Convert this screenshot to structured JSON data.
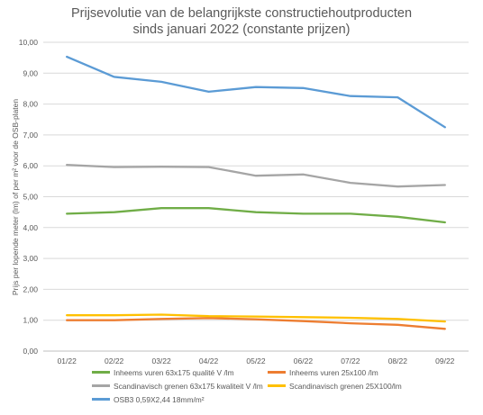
{
  "chart_data": {
    "type": "line",
    "title_line1": "Prijsevolutie van de belangrijkste constructiehoutproducten",
    "title_line2": "sinds januari 2022 (constante prijzen)",
    "ylabel": "Prijs per lopende meter (lm)  of per m² voor de OSB-platen",
    "xlabel": "",
    "ylim": [
      0,
      10
    ],
    "yticks": [
      "0,00",
      "1,00",
      "2,00",
      "3,00",
      "4,00",
      "5,00",
      "6,00",
      "7,00",
      "8,00",
      "9,00",
      "10,00"
    ],
    "categories": [
      "01/22",
      "02/22",
      "03/22",
      "04/22",
      "05/22",
      "06/22",
      "07/22",
      "08/22",
      "09/22"
    ],
    "grid": true,
    "legend_position": "bottom",
    "series": [
      {
        "name": "Inheems vuren 63x175 qualité V /lm",
        "color": "#70AD47",
        "values": [
          4.45,
          4.5,
          4.63,
          4.63,
          4.5,
          4.45,
          4.45,
          4.35,
          4.17
        ]
      },
      {
        "name": "Inheems vuren 25x100 /lm",
        "color": "#ED7D31",
        "values": [
          1.0,
          1.0,
          1.04,
          1.07,
          1.03,
          0.97,
          0.9,
          0.85,
          0.72
        ]
      },
      {
        "name": "Scandinavisch grenen 63x175 kwaliteit V /lm",
        "color": "#A5A5A5",
        "values": [
          6.03,
          5.96,
          5.97,
          5.96,
          5.68,
          5.72,
          5.45,
          5.33,
          5.38
        ]
      },
      {
        "name": "Scandinavisch grenen 25X100/lm",
        "color": "#FFC000",
        "values": [
          1.16,
          1.16,
          1.18,
          1.13,
          1.12,
          1.1,
          1.08,
          1.04,
          0.96
        ]
      },
      {
        "name": "OSB3 0,59X2,44 18mm/m²",
        "color": "#5B9BD5",
        "values": [
          9.53,
          8.88,
          8.72,
          8.4,
          8.55,
          8.52,
          8.26,
          8.22,
          7.25
        ]
      }
    ]
  }
}
